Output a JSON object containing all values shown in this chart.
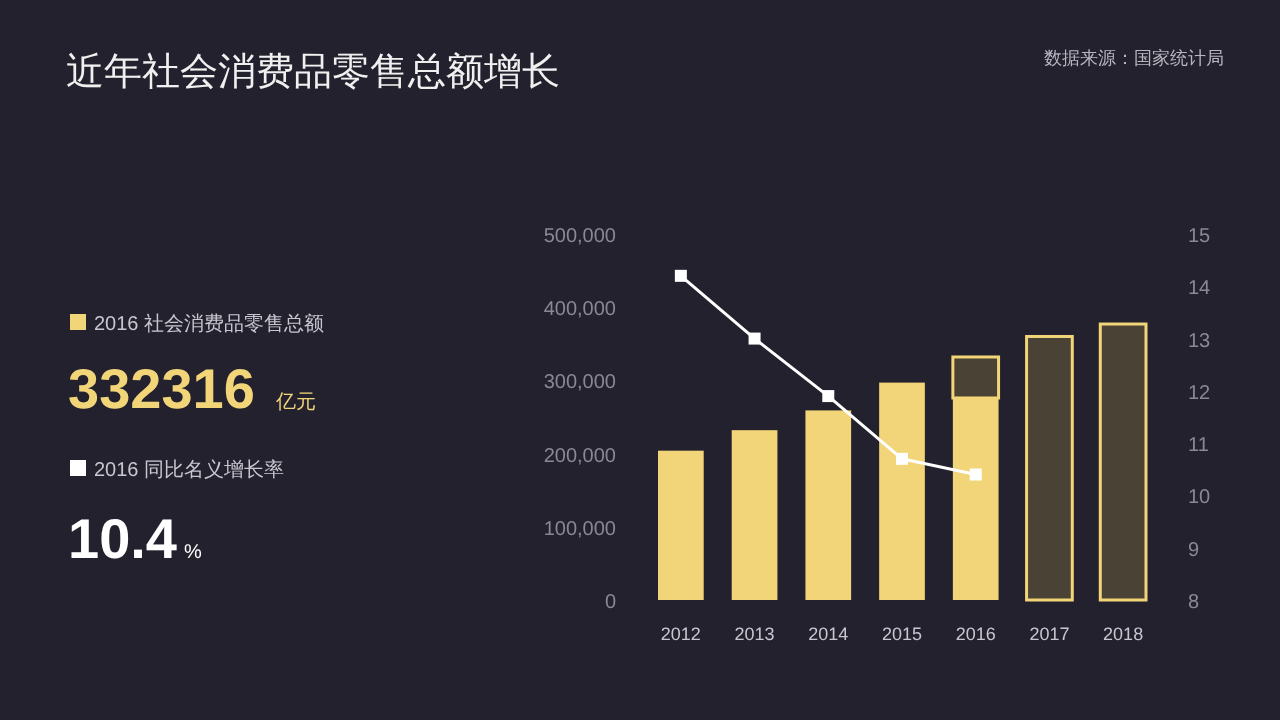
{
  "chart_data": {
    "type": "bar",
    "title": "近年社会消费品零售总额增长",
    "categories": [
      "2012",
      "2013",
      "2014",
      "2015",
      "2016",
      "2017",
      "2018"
    ],
    "stacked": true,
    "series": [
      {
        "name": "2016 社会消费品零售总额",
        "color": "#f2d479",
        "values": [
          204000,
          232000,
          259000,
          297000,
          276000,
          null,
          null
        ]
      },
      {
        "color": "#4a4234",
        "values": [
          null,
          null,
          null,
          null,
          56000,
          360000,
          377000
        ]
      },
      {
        "name": "2016 同比名义增长率",
        "type": "line",
        "axis": "y2",
        "color": "#ffffff",
        "values": [
          14.2,
          13.0,
          11.9,
          10.7,
          10.4,
          null,
          null
        ]
      }
    ],
    "ylim": [
      0,
      500000
    ],
    "yticks": [
      0,
      {
        "value": 100000,
        "label": "100,000"
      },
      {
        "value": 200000,
        "label": "200,000"
      },
      {
        "value": 300000,
        "label": "300,000"
      },
      {
        "value": 400000,
        "label": "400,000"
      },
      {
        "value": 500000,
        "label": "500,000"
      }
    ],
    "y2lim": [
      8,
      15
    ],
    "y2ticks": [
      8,
      9,
      10,
      11,
      12,
      13,
      14,
      15
    ],
    "marker": "square",
    "legend": "left",
    "annotations": [
      "数据来源：国家统计局",
      "332316",
      "亿元",
      "10.4",
      "%"
    ]
  }
}
